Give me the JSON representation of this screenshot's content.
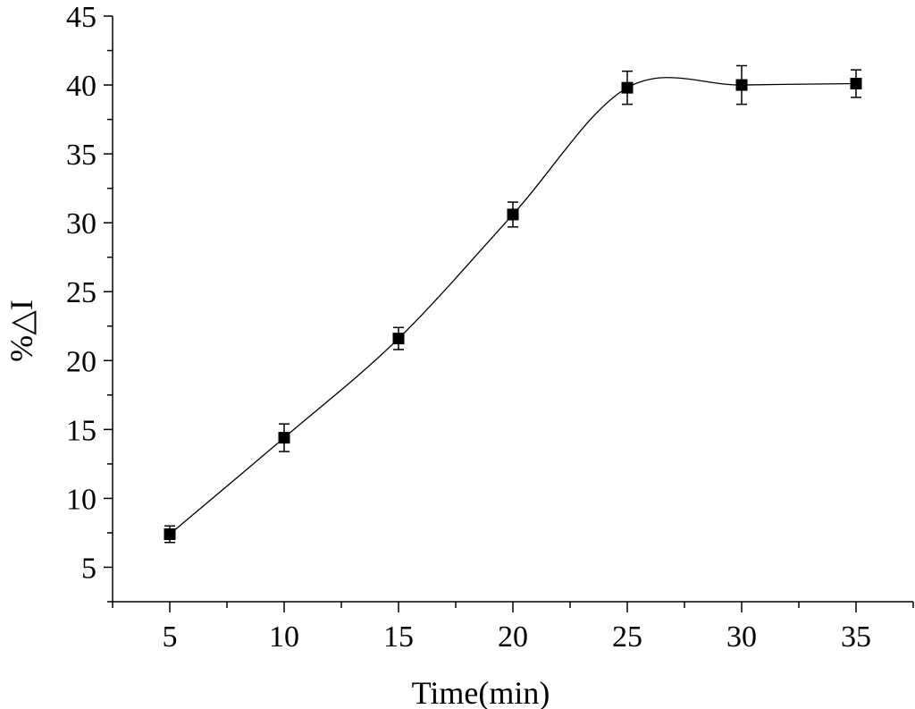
{
  "chart_data": {
    "type": "line",
    "title": "",
    "xlabel": "Time(min)",
    "ylabel": "%△I",
    "xlim": [
      2.5,
      37.5
    ],
    "ylim": [
      2.5,
      45
    ],
    "x_ticks": [
      "5",
      "10",
      "15",
      "20",
      "25",
      "30",
      "35"
    ],
    "y_ticks": [
      "5",
      "10",
      "15",
      "20",
      "25",
      "30",
      "35",
      "40",
      "45"
    ],
    "grid": false,
    "legend": "none",
    "marker": "square",
    "line_style": "smooth spline",
    "series": [
      {
        "x": [
          5,
          10,
          15,
          20,
          25,
          30,
          35
        ],
        "y": [
          7.4,
          14.4,
          21.6,
          30.6,
          39.8,
          40.0,
          40.1
        ],
        "y_error": [
          0.6,
          1.0,
          0.8,
          0.9,
          1.2,
          1.4,
          1.0
        ]
      }
    ]
  }
}
